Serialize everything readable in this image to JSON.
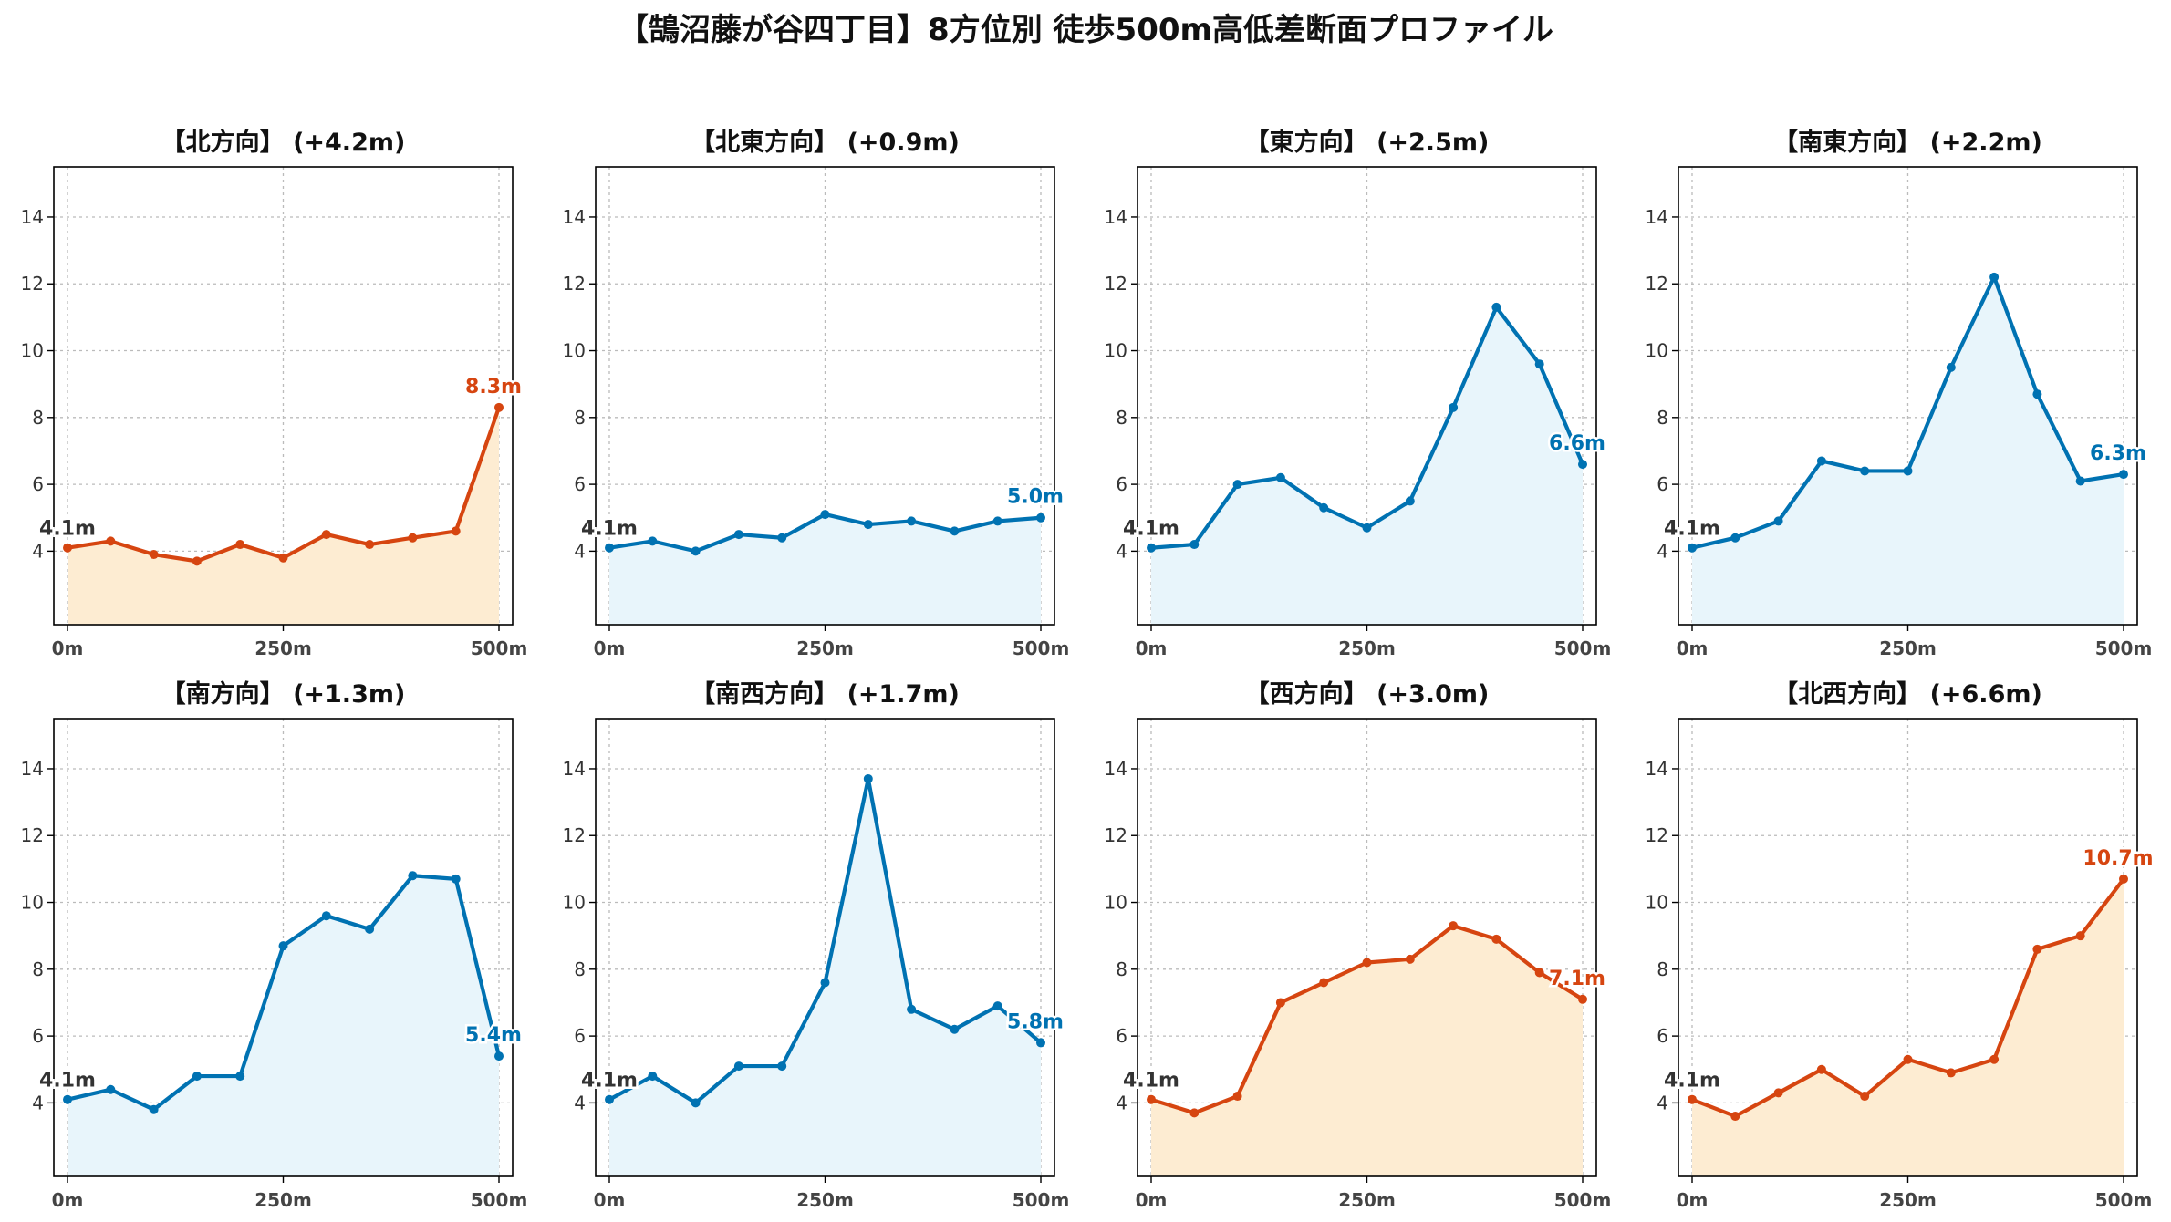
{
  "title": "【鵠沼藤が谷四丁目】8方位別 徒歩500m高低差断面プロファイル",
  "colors": {
    "down": {
      "line": "#0072b2",
      "fill": "#e8f5fb"
    },
    "up": {
      "line": "#d64510",
      "fill": "#fdecd2"
    },
    "start_label": "#333333"
  },
  "chart_data": [
    {
      "type": "area",
      "direction": "【北方向】",
      "diff_label": "(+4.2m)",
      "scheme": "up",
      "x": [
        0,
        50,
        100,
        150,
        200,
        250,
        300,
        350,
        400,
        450,
        500
      ],
      "y": [
        4.1,
        4.3,
        3.9,
        3.7,
        4.2,
        3.8,
        4.5,
        4.2,
        4.4,
        4.6,
        8.3
      ],
      "start_label": "4.1m",
      "end_label": "8.3m",
      "xticks": [
        "0m",
        "250m",
        "500m"
      ],
      "yticks": [
        4,
        6,
        8,
        10,
        12,
        14
      ],
      "xlim": [
        0,
        500
      ],
      "ylim": [
        1.8,
        15.5
      ],
      "grid": true
    },
    {
      "type": "area",
      "direction": "【北東方向】",
      "diff_label": "(+0.9m)",
      "scheme": "down",
      "x": [
        0,
        50,
        100,
        150,
        200,
        250,
        300,
        350,
        400,
        450,
        500
      ],
      "y": [
        4.1,
        4.3,
        4.0,
        4.5,
        4.4,
        5.1,
        4.8,
        4.9,
        4.6,
        4.9,
        5.0
      ],
      "start_label": "4.1m",
      "end_label": "5.0m",
      "xticks": [
        "0m",
        "250m",
        "500m"
      ],
      "yticks": [
        4,
        6,
        8,
        10,
        12,
        14
      ],
      "xlim": [
        0,
        500
      ],
      "ylim": [
        1.8,
        15.5
      ],
      "grid": true
    },
    {
      "type": "area",
      "direction": "【東方向】",
      "diff_label": "(+2.5m)",
      "scheme": "down",
      "x": [
        0,
        50,
        100,
        150,
        200,
        250,
        300,
        350,
        400,
        450,
        500
      ],
      "y": [
        4.1,
        4.2,
        6.0,
        6.2,
        5.3,
        4.7,
        5.5,
        8.3,
        11.3,
        9.6,
        6.6
      ],
      "start_label": "4.1m",
      "end_label": "6.6m",
      "xticks": [
        "0m",
        "250m",
        "500m"
      ],
      "yticks": [
        4,
        6,
        8,
        10,
        12,
        14
      ],
      "xlim": [
        0,
        500
      ],
      "ylim": [
        1.8,
        15.5
      ],
      "grid": true
    },
    {
      "type": "area",
      "direction": "【南東方向】",
      "diff_label": "(+2.2m)",
      "scheme": "down",
      "x": [
        0,
        50,
        100,
        150,
        200,
        250,
        300,
        350,
        400,
        450,
        500
      ],
      "y": [
        4.1,
        4.4,
        4.9,
        6.7,
        6.4,
        6.4,
        9.5,
        12.2,
        8.7,
        6.1,
        6.3
      ],
      "start_label": "4.1m",
      "end_label": "6.3m",
      "xticks": [
        "0m",
        "250m",
        "500m"
      ],
      "yticks": [
        4,
        6,
        8,
        10,
        12,
        14
      ],
      "xlim": [
        0,
        500
      ],
      "ylim": [
        1.8,
        15.5
      ],
      "grid": true
    },
    {
      "type": "area",
      "direction": "【南方向】",
      "diff_label": "(+1.3m)",
      "scheme": "down",
      "x": [
        0,
        50,
        100,
        150,
        200,
        250,
        300,
        350,
        400,
        450,
        500
      ],
      "y": [
        4.1,
        4.4,
        3.8,
        4.8,
        4.8,
        8.7,
        9.6,
        9.2,
        10.8,
        10.7,
        5.4
      ],
      "start_label": "4.1m",
      "end_label": "5.4m",
      "xticks": [
        "0m",
        "250m",
        "500m"
      ],
      "yticks": [
        4,
        6,
        8,
        10,
        12,
        14
      ],
      "xlim": [
        0,
        500
      ],
      "ylim": [
        1.8,
        15.5
      ],
      "grid": true
    },
    {
      "type": "area",
      "direction": "【南西方向】",
      "diff_label": "(+1.7m)",
      "scheme": "down",
      "x": [
        0,
        50,
        100,
        150,
        200,
        250,
        300,
        350,
        400,
        450,
        500
      ],
      "y": [
        4.1,
        4.8,
        4.0,
        5.1,
        5.1,
        7.6,
        13.7,
        6.8,
        6.2,
        6.9,
        5.8
      ],
      "start_label": "4.1m",
      "end_label": "5.8m",
      "xticks": [
        "0m",
        "250m",
        "500m"
      ],
      "yticks": [
        4,
        6,
        8,
        10,
        12,
        14
      ],
      "xlim": [
        0,
        500
      ],
      "ylim": [
        1.8,
        15.5
      ],
      "grid": true
    },
    {
      "type": "area",
      "direction": "【西方向】",
      "diff_label": "(+3.0m)",
      "scheme": "up",
      "x": [
        0,
        50,
        100,
        150,
        200,
        250,
        300,
        350,
        400,
        450,
        500
      ],
      "y": [
        4.1,
        3.7,
        4.2,
        7.0,
        7.6,
        8.2,
        8.3,
        9.3,
        8.9,
        7.9,
        7.1
      ],
      "start_label": "4.1m",
      "end_label": "7.1m",
      "xticks": [
        "0m",
        "250m",
        "500m"
      ],
      "yticks": [
        4,
        6,
        8,
        10,
        12,
        14
      ],
      "xlim": [
        0,
        500
      ],
      "ylim": [
        1.8,
        15.5
      ],
      "grid": true
    },
    {
      "type": "area",
      "direction": "【北西方向】",
      "diff_label": "(+6.6m)",
      "scheme": "up",
      "x": [
        0,
        50,
        100,
        150,
        200,
        250,
        300,
        350,
        400,
        450,
        500
      ],
      "y": [
        4.1,
        3.6,
        4.3,
        5.0,
        4.2,
        5.3,
        4.9,
        5.3,
        8.6,
        9.0,
        10.7
      ],
      "start_label": "4.1m",
      "end_label": "10.7m",
      "xticks": [
        "0m",
        "250m",
        "500m"
      ],
      "yticks": [
        4,
        6,
        8,
        10,
        12,
        14
      ],
      "xlim": [
        0,
        500
      ],
      "ylim": [
        1.8,
        15.5
      ],
      "grid": true
    }
  ]
}
